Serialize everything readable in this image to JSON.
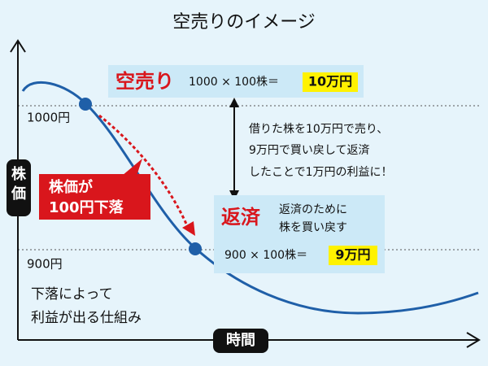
{
  "title": "空売りのイメージ",
  "axes": {
    "y_label": "株価",
    "x_label": "時間"
  },
  "levels": [
    "1000円",
    "900円"
  ],
  "callouts": [
    {
      "label": "空売り",
      "formula": "1000 × 100株＝",
      "amount": "10万円"
    },
    {
      "label": "返済",
      "note": [
        "返済のために",
        "株を買い戻す"
      ],
      "formula": "900 × 100株＝",
      "amount": "9万円"
    }
  ],
  "drop_badge": [
    "株価が",
    "100円下落"
  ],
  "profit_note": [
    "借りた株を10万円で売り、",
    "9万円で買い戻して返済",
    "したことで1万円の利益に！"
  ],
  "summary": [
    "下落によって",
    "利益が出る仕組み"
  ]
}
